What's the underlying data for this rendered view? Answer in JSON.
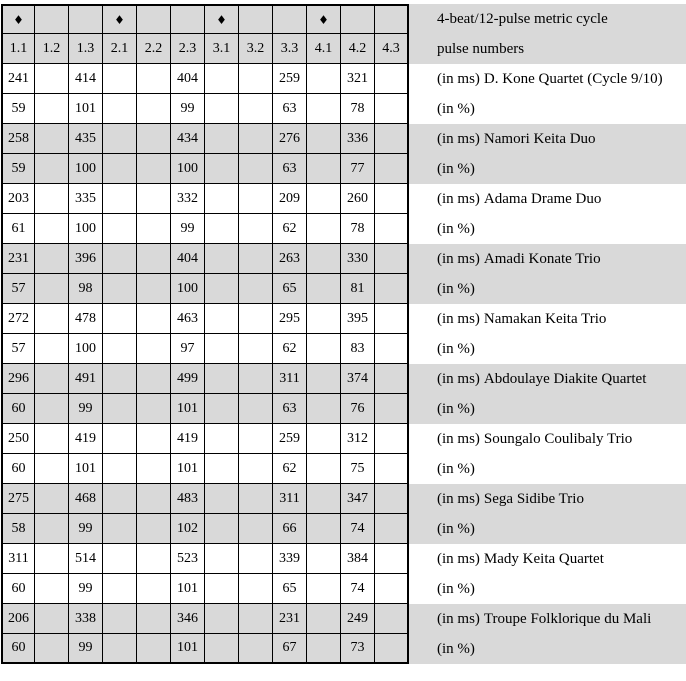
{
  "header": {
    "cycle_label": "4-beat/12-pulse metric cycle",
    "pulse_label": "pulse numbers",
    "pulses": [
      "1.1",
      "1.2",
      "1.3",
      "2.1",
      "2.2",
      "2.3",
      "3.1",
      "3.2",
      "3.3",
      "4.1",
      "4.2",
      "4.3"
    ],
    "beat_marker_glyph": "♦",
    "beat_marker_columns": [
      0,
      3,
      6,
      9
    ]
  },
  "value_columns": [
    0,
    2,
    5,
    8,
    10
  ],
  "labels": {
    "ms_prefix": "(in ms)",
    "pct": "(in %)"
  },
  "ensembles": [
    {
      "name": "D. Kone Quartet (Cycle 9/10)",
      "ms": [
        241,
        414,
        404,
        259,
        321
      ],
      "pct": [
        59,
        101,
        99,
        63,
        78
      ],
      "shaded": false
    },
    {
      "name": "Namori Keita Duo",
      "ms": [
        258,
        435,
        434,
        276,
        336
      ],
      "pct": [
        59,
        100,
        100,
        63,
        77
      ],
      "shaded": true
    },
    {
      "name": "Adama Drame Duo",
      "ms": [
        203,
        335,
        332,
        209,
        260
      ],
      "pct": [
        61,
        100,
        99,
        62,
        78
      ],
      "shaded": false
    },
    {
      "name": "Amadi Konate Trio",
      "ms": [
        231,
        396,
        404,
        263,
        330
      ],
      "pct": [
        57,
        98,
        100,
        65,
        81
      ],
      "shaded": true
    },
    {
      "name": "Namakan Keita Trio",
      "ms": [
        272,
        478,
        463,
        295,
        395
      ],
      "pct": [
        57,
        100,
        97,
        62,
        83
      ],
      "shaded": false
    },
    {
      "name": "Abdoulaye Diakite Quartet",
      "ms": [
        296,
        491,
        499,
        311,
        374
      ],
      "pct": [
        60,
        99,
        101,
        63,
        76
      ],
      "shaded": true
    },
    {
      "name": "Soungalo Coulibaly Trio",
      "ms": [
        250,
        419,
        419,
        259,
        312
      ],
      "pct": [
        60,
        101,
        101,
        62,
        75
      ],
      "shaded": false
    },
    {
      "name": "Sega Sidibe Trio",
      "ms": [
        275,
        468,
        483,
        311,
        347
      ],
      "pct": [
        58,
        99,
        102,
        66,
        74
      ],
      "shaded": true
    },
    {
      "name": "Mady Keita Quartet",
      "ms": [
        311,
        514,
        523,
        339,
        384
      ],
      "pct": [
        60,
        99,
        101,
        65,
        74
      ],
      "shaded": false
    },
    {
      "name": "Troupe Folklorique du Mali",
      "ms": [
        206,
        338,
        346,
        231,
        249
      ],
      "pct": [
        60,
        99,
        101,
        67,
        73
      ],
      "shaded": true
    }
  ],
  "colors": {
    "band_gray": "#d9d9d9",
    "grid_border": "#000000",
    "page_bg": "#ffffff"
  }
}
